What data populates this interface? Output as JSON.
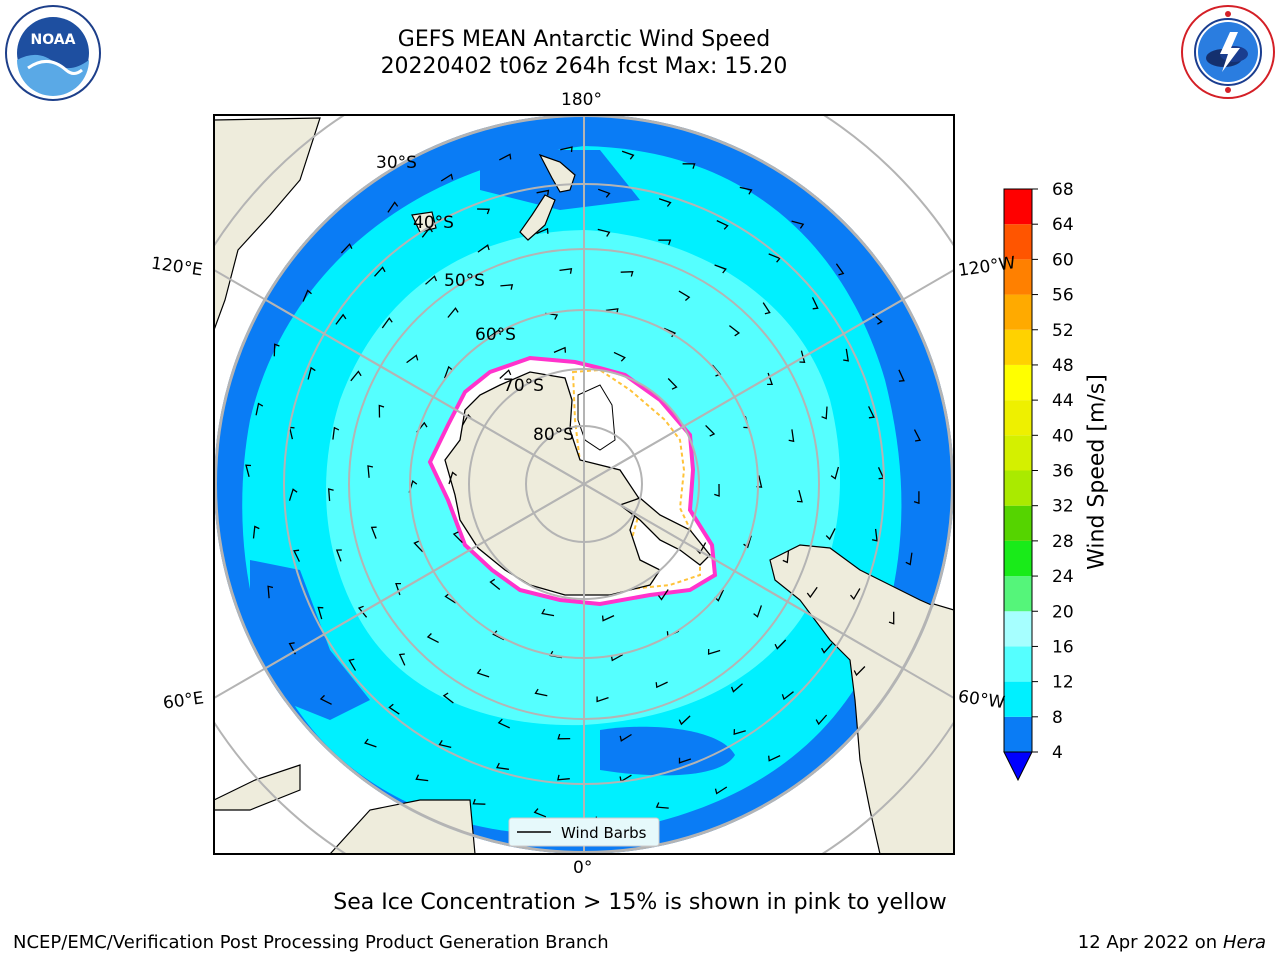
{
  "header": {
    "title_line1": "GEFS MEAN Antarctic Wind Speed",
    "title_line2": "20220402 t06z 264h fcst   Max: 15.20"
  },
  "logos": {
    "left": "noaa-logo",
    "right": "nws-logo"
  },
  "map": {
    "longitude_labels": {
      "top": "180°",
      "bottom": "0°",
      "upper_left": "120°E",
      "upper_right": "120°W",
      "lower_left": "60°E",
      "lower_right": "60°W"
    },
    "latitude_labels": [
      "30°S",
      "40°S",
      "50°S",
      "60°S",
      "70°S",
      "80°S"
    ],
    "legend_label": "Wind Barbs",
    "colors": {
      "land": "#eeecdc",
      "ocean_deep_blue": "#0a7cf5",
      "ocean_cyan": "#00f0ff",
      "ocean_light_cyan": "#55ffff",
      "ice_edge": "#ff33cc",
      "ice_inner": "#ffc33a",
      "grid": "#b4b4b4"
    }
  },
  "colorbar": {
    "label": "Wind Speed [m/s]",
    "ticks": [
      "4",
      "8",
      "12",
      "16",
      "20",
      "24",
      "28",
      "32",
      "36",
      "40",
      "44",
      "48",
      "52",
      "56",
      "60",
      "64",
      "68"
    ],
    "bin_colors": [
      "#0a7cf5",
      "#00f0ff",
      "#55ffff",
      "#a6ffff",
      "#55f57a",
      "#19eb19",
      "#55d400",
      "#aaea00",
      "#d4f000",
      "#eef000",
      "#ffff00",
      "#ffd200",
      "#ffaa00",
      "#ff8000",
      "#ff5500",
      "#ff0000"
    ],
    "extend_color": "#0000ff"
  },
  "sub_note": "Sea Ice Concentration > 15% is shown in pink to yellow",
  "footer": {
    "left": "NCEP/EMC/Verification Post Processing Product Generation Branch",
    "right_date": "12 Apr 2022 on ",
    "right_host": "Hera"
  }
}
